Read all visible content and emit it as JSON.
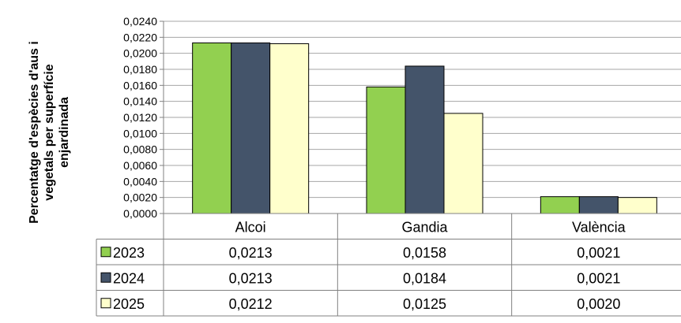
{
  "chart_data": {
    "type": "bar",
    "title": "",
    "ylabel": "Percentatge d'espècies d'aus i vegetals per superfície enjardinada",
    "ylabel_lines": [
      "Percentatge d'espècies d'aus i",
      "vegetals per superfície",
      "enjardinada"
    ],
    "xlabel": "",
    "categories": [
      "Alcoi",
      "Gandia",
      "València"
    ],
    "series": [
      {
        "name": "2023",
        "values": [
          0.0213,
          0.0158,
          0.0021
        ],
        "labels": [
          "0,0213",
          "0,0158",
          "0,0021"
        ],
        "color": "#92d050"
      },
      {
        "name": "2024",
        "values": [
          0.0213,
          0.0184,
          0.0021
        ],
        "labels": [
          "0,0213",
          "0,0184",
          "0,0021"
        ],
        "color": "#44546a"
      },
      {
        "name": "2025",
        "values": [
          0.0212,
          0.0125,
          0.002
        ],
        "labels": [
          "0,0212",
          "0,0125",
          "0,0020"
        ],
        "color": "#ffffcc"
      }
    ],
    "ylim": [
      0,
      0.024
    ],
    "yticks": [
      "0,0000",
      "0,0020",
      "0,0040",
      "0,0060",
      "0,0080",
      "0,0100",
      "0,0120",
      "0,0140",
      "0,0160",
      "0,0180",
      "0,0200",
      "0,0220",
      "0,0240"
    ],
    "grid": true,
    "legend": "data-table"
  }
}
